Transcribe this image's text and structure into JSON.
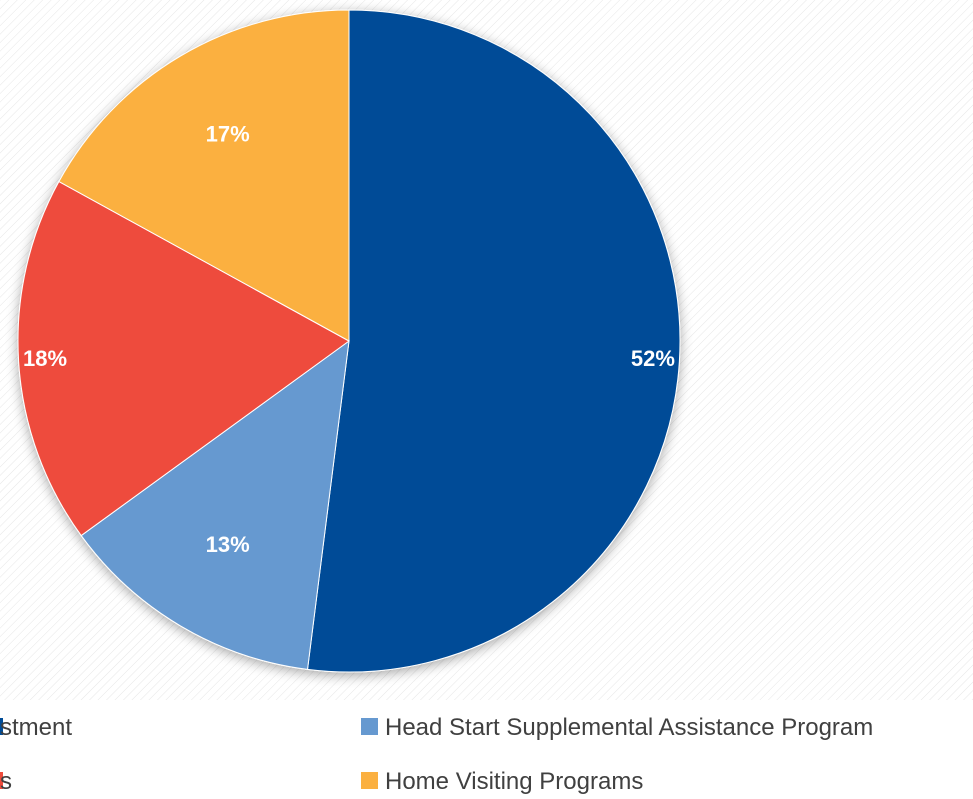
{
  "chart_data": {
    "type": "pie",
    "title": "",
    "categories": [
      "Investment",
      "Head Start Supplemental Assistance Program",
      "Programs",
      "Home Visiting Programs"
    ],
    "values": [
      52,
      13,
      18,
      17
    ],
    "labels": [
      "52%",
      "13%",
      "18%",
      "17%"
    ],
    "colors": [
      "#004C97",
      "#6699D0",
      "#EE4B3C",
      "#FBB040"
    ],
    "label_colors": [
      "#ffffff",
      "#ffffff",
      "#ffffff",
      "#ffffff"
    ],
    "legend_visible_text": [
      "stment",
      "Head Start Supplemental Assistance Program",
      "s",
      "Home Visiting Programs"
    ],
    "legend_position": "bottom",
    "start_angle_deg": 0,
    "direction": "clockwise"
  }
}
